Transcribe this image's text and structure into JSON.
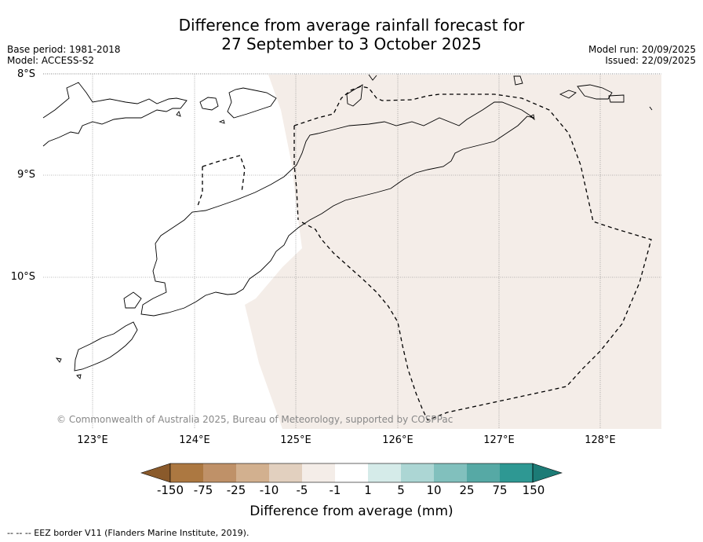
{
  "title": {
    "line1": "Difference from average rainfall forecast for",
    "line2": "27 September to 3 October 2025"
  },
  "meta": {
    "base_period": "Base period: 1981-2018",
    "model": "Model: ACCESS-S2",
    "model_run": "Model run: 20/09/2025",
    "issued": "Issued: 22/09/2025"
  },
  "map": {
    "latitude_labels": [
      "8°S",
      "9°S",
      "10°S"
    ],
    "longitude_labels": [
      "123°E",
      "124°E",
      "125°E",
      "126°E",
      "127°E",
      "128°E"
    ],
    "credit": "© Commonwealth of Australia 2025, Bureau of Meteorology, supported by COSPPac",
    "shaded_category": "-1 to -5 mm (slightly below average)",
    "shade_color": "#f4ede8"
  },
  "colorbar": {
    "title": "Difference from average (mm)",
    "tick_labels": [
      "-150",
      "-75",
      "-25",
      "-10",
      "-5",
      "-1",
      "1",
      "5",
      "10",
      "25",
      "75",
      "150"
    ],
    "colors": [
      "#8a5a2b",
      "#ac7841",
      "#bf9168",
      "#d2b08f",
      "#e2d0bf",
      "#f4ede8",
      "#ffffff",
      "#d5ebe9",
      "#acd6d4",
      "#81c0bd",
      "#56a9a5",
      "#2e9893",
      "#1c7b76"
    ]
  },
  "footnote": "--  --  -- EEZ border V11 (Flanders Marine Institute, 2019)."
}
